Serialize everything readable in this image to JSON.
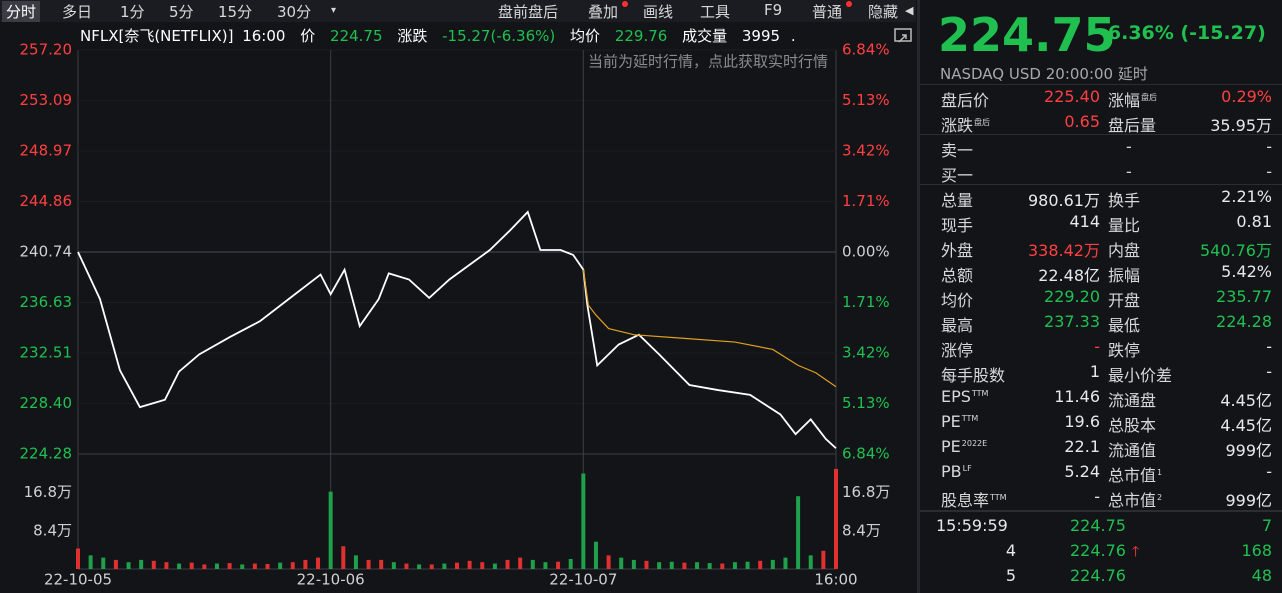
{
  "toolbar": {
    "tabs": [
      "分时",
      "多日",
      "1分",
      "5分",
      "15分",
      "30分"
    ],
    "buttons": [
      "盘前盘后",
      "叠加",
      "画线",
      "工具",
      "F9",
      "普通",
      "隐藏"
    ]
  },
  "chart_data": {
    "type": "line",
    "title": "NFLX[奈飞(NETFLIX)]",
    "time": "16:00",
    "price": "224.75",
    "change_label": "涨跌",
    "change": "-15.27(-6.36%)",
    "avg": "229.76",
    "volume_label": "成交量",
    "volume_total": "3995",
    "tail": ".",
    "annotation": "当前为延时行情，点此获取实时行情",
    "series": [
      {
        "name": "价",
        "color": "#ffffff",
        "x": [
          0,
          0.087,
          0.166,
          0.245,
          0.344,
          0.4,
          0.48,
          0.6,
          0.72,
          0.84,
          0.96,
          1.0,
          1.055,
          1.115,
          1.19,
          1.23,
          1.31,
          1.39,
          1.47,
          1.55,
          1.63,
          1.71,
          1.78,
          1.83,
          1.91,
          1.96,
          2.0,
          2.016,
          2.055,
          2.14,
          2.22,
          2.3,
          2.42,
          2.53,
          2.66,
          2.78,
          2.84,
          2.9,
          2.96,
          3.0
        ],
        "values": [
          240.74,
          236.9,
          231.1,
          228.1,
          228.7,
          231.0,
          232.4,
          233.8,
          235.1,
          237.0,
          238.9,
          237.3,
          239.3,
          234.7,
          236.9,
          239.0,
          238.5,
          237.0,
          238.5,
          239.7,
          240.9,
          242.5,
          244.0,
          240.9,
          240.9,
          240.5,
          239.3,
          236.4,
          231.5,
          233.2,
          234.0,
          232.4,
          229.9,
          229.5,
          229.1,
          227.5,
          225.9,
          227.1,
          225.5,
          224.75
        ]
      },
      {
        "name": "均价",
        "color": "#e0a020",
        "x": [
          2.0,
          2.02,
          2.05,
          2.1,
          2.2,
          2.4,
          2.6,
          2.75,
          2.85,
          2.92,
          3.0
        ],
        "values": [
          239.3,
          236.4,
          235.6,
          234.5,
          234.0,
          233.7,
          233.4,
          232.8,
          231.5,
          230.9,
          229.76
        ]
      }
    ],
    "xlim": [
      0,
      3
    ],
    "xticks": [
      {
        "value": 0,
        "label": "22-10-05"
      },
      {
        "value": 1,
        "label": "22-10-06"
      },
      {
        "value": 2,
        "label": "22-10-07"
      },
      {
        "value": 3,
        "label": "16:00"
      }
    ],
    "ylim": [
      224.28,
      257.2
    ],
    "yticks": [
      {
        "value": 257.2,
        "label": "257.20"
      },
      253.09,
      248.97,
      244.86,
      240.74,
      236.63,
      232.51,
      {
        "value": 228.4,
        "label": "228.40"
      },
      224.28
    ],
    "y2lim": [
      -6.84,
      6.84
    ],
    "y2ticks": [
      {
        "value": 6.84,
        "label": "6.84%"
      },
      {
        "value": 5.13,
        "label": "5.13%"
      },
      {
        "value": 3.42,
        "label": "3.42%"
      },
      {
        "value": 1.71,
        "label": "1.71%"
      },
      {
        "value": 0,
        "label": "0.00%"
      },
      {
        "value": -1.71,
        "label": "1.71%"
      },
      {
        "value": -3.42,
        "label": "3.42%"
      },
      {
        "value": -5.13,
        "label": "5.13%"
      },
      {
        "value": -6.84,
        "label": "6.84%"
      }
    ],
    "volume": {
      "ylim": [
        0,
        24.4
      ],
      "yticks": [
        {
          "value": 16.8,
          "label": "16.8万"
        },
        {
          "value": 8.4,
          "label": "8.4万"
        }
      ],
      "x": [
        0,
        0.05,
        0.1,
        0.15,
        0.2,
        0.25,
        0.3,
        0.35,
        0.4,
        0.45,
        0.5,
        0.55,
        0.6,
        0.65,
        0.7,
        0.75,
        0.8,
        0.85,
        0.9,
        0.95,
        1.0,
        1.05,
        1.1,
        1.15,
        1.2,
        1.25,
        1.3,
        1.35,
        1.4,
        1.45,
        1.5,
        1.55,
        1.6,
        1.65,
        1.7,
        1.75,
        1.8,
        1.85,
        1.9,
        1.95,
        2.0,
        2.05,
        2.1,
        2.15,
        2.2,
        2.25,
        2.3,
        2.35,
        2.4,
        2.45,
        2.5,
        2.55,
        2.6,
        2.65,
        2.7,
        2.75,
        2.8,
        2.85,
        2.9,
        2.95,
        3.0
      ],
      "values": [
        4.5,
        3,
        2.5,
        2,
        1.5,
        2,
        1.8,
        1.5,
        1.2,
        1.4,
        1,
        1.2,
        1.3,
        1,
        1.2,
        1.1,
        1.4,
        1.5,
        2,
        2.5,
        17,
        5,
        3,
        2,
        2,
        1.5,
        1.2,
        1,
        1,
        1.2,
        1.4,
        1.8,
        1.5,
        1.2,
        2,
        2.5,
        2,
        1.5,
        1.6,
        2.2,
        21,
        6,
        3,
        2.5,
        2,
        1.8,
        1.5,
        1.6,
        1.4,
        1.5,
        1.3,
        1.2,
        1.5,
        1.6,
        1.8,
        2,
        2.5,
        16,
        3,
        4,
        22
      ],
      "colors": [
        "#e03030",
        "#1fa04a",
        "#1fa04a",
        "#e03030",
        "#1fa04a",
        "#1fa04a",
        "#e03030",
        "#e03030",
        "#1fa04a",
        "#e03030",
        "#e03030",
        "#1fa04a",
        "#e03030",
        "#1fa04a",
        "#e03030",
        "#e03030",
        "#1fa04a",
        "#e03030",
        "#e03030",
        "#e03030",
        "#1fa04a",
        "#e03030",
        "#1fa04a",
        "#e03030",
        "#e03030",
        "#1fa04a",
        "#e03030",
        "#1fa04a",
        "#e03030",
        "#1fa04a",
        "#e03030",
        "#e03030",
        "#e03030",
        "#1fa04a",
        "#e03030",
        "#e03030",
        "#1fa04a",
        "#1fa04a",
        "#e03030",
        "#1fa04a",
        "#1fa04a",
        "#1fa04a",
        "#e03030",
        "#1fa04a",
        "#1fa04a",
        "#e03030",
        "#1fa04a",
        "#1fa04a",
        "#e03030",
        "#1fa04a",
        "#1fa04a",
        "#e03030",
        "#1fa04a",
        "#1fa04a",
        "#e03030",
        "#1fa04a",
        "#1fa04a",
        "#1fa04a",
        "#1fa04a",
        "#e03030",
        "#e03030"
      ]
    }
  },
  "quote": {
    "price": "224.75",
    "change": "-6.36% (-15.27)",
    "exchange": "NASDAQ",
    "currency": "USD",
    "time": "20:00:00",
    "status": "延时"
  },
  "stats": {
    "rows": [
      [
        "盘后价",
        "225.40",
        {
          "text": "涨幅",
          "sup": "盘后"
        },
        "0.29%"
      ],
      [
        {
          "text": "涨跌",
          "sup": "盘后"
        },
        "0.65",
        "盘后量",
        "35.95万"
      ],
      [
        "卖一",
        "-",
        "-"
      ],
      [
        "买一",
        "-",
        "-"
      ],
      [
        "总量",
        "980.61万",
        "换手",
        "2.21%"
      ],
      [
        "现手",
        "414",
        "量比",
        "0.81"
      ],
      [
        "外盘",
        "338.42万",
        "内盘",
        "540.76万"
      ],
      [
        "总额",
        "22.48亿",
        "振幅",
        "5.42%"
      ],
      [
        "均价",
        "229.20",
        "开盘",
        "235.77"
      ],
      [
        "最高",
        "237.33",
        "最低",
        "224.28"
      ],
      [
        "涨停",
        "-",
        "跌停",
        "-"
      ],
      [
        "每手股数",
        "1",
        "最小价差",
        "-"
      ],
      [
        {
          "text": "EPS",
          "sup": "TTM"
        },
        "11.46",
        "流通盘",
        "4.45亿"
      ],
      [
        {
          "text": "PE",
          "sup": "TTM"
        },
        "19.6",
        "总股本",
        "4.45亿"
      ],
      [
        {
          "text": "PE",
          "sup": "2022E"
        },
        "22.1",
        "流通值",
        "999亿"
      ],
      [
        {
          "text": "PB",
          "sup": "LF"
        },
        "5.24",
        {
          "text": "总市值",
          "sup": "1"
        },
        "-"
      ],
      [
        {
          "text": "股息率",
          "sup": "TTM"
        },
        "-",
        {
          "text": "总市值",
          "sup": "2"
        },
        "999亿"
      ]
    ]
  },
  "ticks": {
    "rows": [
      [
        "15:59:59",
        "224.75",
        "7"
      ],
      [
        "4",
        "224.76",
        "168"
      ],
      [
        "5",
        "224.76",
        "48"
      ]
    ]
  }
}
